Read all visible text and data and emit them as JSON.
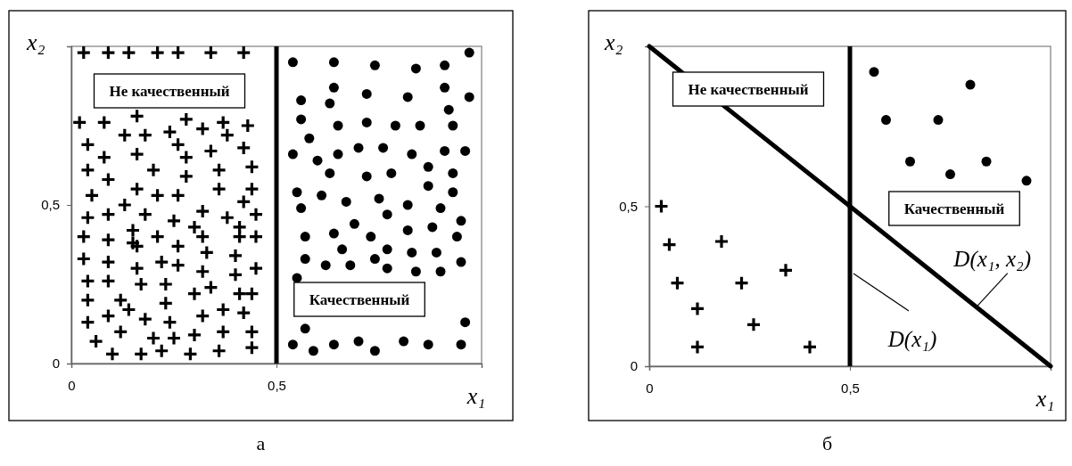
{
  "chart_data": [
    {
      "type": "scatter",
      "title": "а",
      "xlabel": "x₁",
      "ylabel": "x₂",
      "xlim": [
        0,
        1
      ],
      "ylim": [
        0,
        1
      ],
      "xticks": [
        0,
        {
          "value": 0.5,
          "label": "0,5"
        }
      ],
      "yticks": [
        0,
        {
          "value": 0.5,
          "label": "0,5"
        }
      ],
      "ref_lines": [
        {
          "axis": "x",
          "value": 0.5,
          "color": "#000000"
        }
      ],
      "annotations": [
        "Не качественный",
        "Качественный"
      ],
      "series": [
        {
          "color": "#000000",
          "marker": "cross",
          "x": [
            0.03,
            0.09,
            0.14,
            0.21,
            0.26,
            0.34,
            0.42,
            0.02,
            0.08,
            0.16,
            0.28,
            0.37,
            0.43,
            0.13,
            0.18,
            0.24,
            0.32,
            0.38,
            0.04,
            0.26,
            0.34,
            0.42,
            0.08,
            0.16,
            0.28,
            0.04,
            0.2,
            0.36,
            0.44,
            0.09,
            0.28,
            0.05,
            0.16,
            0.21,
            0.26,
            0.36,
            0.44,
            0.13,
            0.42,
            0.04,
            0.09,
            0.18,
            0.25,
            0.32,
            0.38,
            0.45,
            0.15,
            0.3,
            0.41,
            0.03,
            0.09,
            0.15,
            0.21,
            0.26,
            0.32,
            0.41,
            0.45,
            0.16,
            0.33,
            0.4,
            0.03,
            0.09,
            0.16,
            0.22,
            0.26,
            0.32,
            0.4,
            0.45,
            0.04,
            0.09,
            0.17,
            0.23,
            0.3,
            0.34,
            0.41,
            0.44,
            0.04,
            0.12,
            0.14,
            0.23,
            0.37,
            0.42,
            0.04,
            0.09,
            0.18,
            0.24,
            0.32,
            0.06,
            0.12,
            0.2,
            0.25,
            0.3,
            0.37,
            0.44,
            0.1,
            0.17,
            0.22,
            0.29,
            0.36,
            0.44
          ],
          "values": [
            0.98,
            0.98,
            0.98,
            0.98,
            0.98,
            0.98,
            0.98,
            0.76,
            0.76,
            0.78,
            0.77,
            0.76,
            0.75,
            0.72,
            0.72,
            0.73,
            0.74,
            0.72,
            0.69,
            0.69,
            0.67,
            0.68,
            0.65,
            0.66,
            0.65,
            0.61,
            0.61,
            0.61,
            0.62,
            0.58,
            0.59,
            0.53,
            0.55,
            0.53,
            0.53,
            0.55,
            0.55,
            0.5,
            0.51,
            0.46,
            0.47,
            0.47,
            0.45,
            0.48,
            0.46,
            0.47,
            0.42,
            0.43,
            0.43,
            0.4,
            0.39,
            0.38,
            0.4,
            0.37,
            0.4,
            0.4,
            0.4,
            0.37,
            0.35,
            0.34,
            0.33,
            0.32,
            0.3,
            0.32,
            0.31,
            0.29,
            0.28,
            0.3,
            0.26,
            0.26,
            0.25,
            0.25,
            0.22,
            0.24,
            0.22,
            0.22,
            0.2,
            0.2,
            0.17,
            0.19,
            0.17,
            0.16,
            0.13,
            0.15,
            0.14,
            0.13,
            0.15,
            0.07,
            0.1,
            0.08,
            0.08,
            0.09,
            0.1,
            0.1,
            0.03,
            0.03,
            0.04,
            0.03,
            0.04,
            0.05
          ]
        },
        {
          "color": "#000000",
          "marker": "circle",
          "x": [
            0.54,
            0.64,
            0.74,
            0.84,
            0.91,
            0.97,
            0.64,
            0.72,
            0.82,
            0.91,
            0.97,
            0.56,
            0.63,
            0.92,
            0.56,
            0.65,
            0.72,
            0.79,
            0.85,
            0.93,
            0.58,
            0.54,
            0.6,
            0.65,
            0.7,
            0.76,
            0.83,
            0.91,
            0.96,
            0.63,
            0.72,
            0.78,
            0.87,
            0.93,
            0.55,
            0.61,
            0.67,
            0.75,
            0.82,
            0.87,
            0.93,
            0.56,
            0.77,
            0.9,
            0.95,
            0.57,
            0.64,
            0.69,
            0.73,
            0.82,
            0.88,
            0.94,
            0.57,
            0.62,
            0.66,
            0.68,
            0.74,
            0.77,
            0.83,
            0.89,
            0.95,
            0.55,
            0.77,
            0.84,
            0.9,
            0.57,
            0.96,
            0.54,
            0.59,
            0.64,
            0.7,
            0.74,
            0.81,
            0.87,
            0.95
          ],
          "values": [
            0.95,
            0.95,
            0.94,
            0.93,
            0.94,
            0.98,
            0.87,
            0.85,
            0.84,
            0.87,
            0.84,
            0.83,
            0.82,
            0.8,
            0.77,
            0.75,
            0.76,
            0.75,
            0.75,
            0.75,
            0.71,
            0.66,
            0.64,
            0.66,
            0.68,
            0.68,
            0.66,
            0.67,
            0.67,
            0.6,
            0.59,
            0.6,
            0.62,
            0.6,
            0.54,
            0.53,
            0.51,
            0.52,
            0.5,
            0.56,
            0.54,
            0.49,
            0.47,
            0.49,
            0.45,
            0.4,
            0.41,
            0.44,
            0.4,
            0.42,
            0.43,
            0.4,
            0.33,
            0.31,
            0.36,
            0.31,
            0.33,
            0.36,
            0.35,
            0.35,
            0.32,
            0.27,
            0.3,
            0.29,
            0.29,
            0.11,
            0.13,
            0.06,
            0.04,
            0.06,
            0.07,
            0.04,
            0.07,
            0.06,
            0.06
          ]
        }
      ]
    },
    {
      "type": "scatter",
      "title": "б",
      "xlabel": "x₁",
      "ylabel": "x₂",
      "xlim": [
        0,
        1
      ],
      "ylim": [
        0,
        1
      ],
      "xticks": [
        0,
        {
          "value": 0.5,
          "label": "0,5"
        }
      ],
      "yticks": [
        0,
        {
          "value": 0.5,
          "label": "0,5"
        }
      ],
      "ref_lines": [
        {
          "axis": "x",
          "value": 0.5,
          "label": "D(x₁)",
          "color": "#000000"
        }
      ],
      "annotations": [
        "Не качественный",
        "Качественный"
      ],
      "series": [
        {
          "type": "line",
          "name": "D(x₁, x₂)",
          "color": "#000000",
          "x": [
            0,
            1
          ],
          "values": [
            1,
            0
          ]
        },
        {
          "color": "#000000",
          "marker": "cross",
          "x": [
            0.03,
            0.05,
            0.07,
            0.12,
            0.12,
            0.18,
            0.23,
            0.26,
            0.34,
            0.4
          ],
          "values": [
            0.5,
            0.38,
            0.26,
            0.18,
            0.06,
            0.39,
            0.26,
            0.13,
            0.3,
            0.06
          ]
        },
        {
          "color": "#000000",
          "marker": "circle",
          "x": [
            0.56,
            0.8,
            0.59,
            0.72,
            0.65,
            0.84,
            0.75,
            0.94
          ],
          "values": [
            0.92,
            0.88,
            0.77,
            0.77,
            0.64,
            0.64,
            0.6,
            0.58
          ]
        }
      ]
    }
  ]
}
